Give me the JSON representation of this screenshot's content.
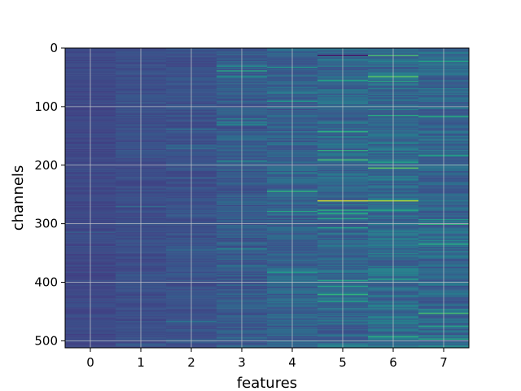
{
  "chart_data": {
    "type": "heatmap",
    "title": "",
    "xlabel": "features",
    "ylabel": "channels",
    "x_categories": [
      0,
      1,
      2,
      3,
      4,
      5,
      6,
      7
    ],
    "x_ticks": [
      "0",
      "1",
      "2",
      "3",
      "4",
      "5",
      "6",
      "7"
    ],
    "y_ticks": [
      "0",
      "100",
      "200",
      "300",
      "400",
      "500"
    ],
    "y_tick_values": [
      0,
      100,
      200,
      300,
      400,
      500
    ],
    "y_range": [
      0,
      512
    ],
    "n_channels": 512,
    "colormap": "viridis",
    "grid": true,
    "column_mean_levels": [
      0.22,
      0.24,
      0.25,
      0.29,
      0.31,
      0.33,
      0.35,
      0.33
    ],
    "column_spread": [
      0.03,
      0.035,
      0.04,
      0.07,
      0.08,
      0.09,
      0.1,
      0.09
    ],
    "highlight_cells": [
      {
        "feature": 5,
        "channel": 260,
        "level": 0.95
      },
      {
        "feature": 6,
        "channel": 260,
        "level": 0.9
      },
      {
        "feature": 5,
        "channel": 12,
        "level": 0.05
      },
      {
        "feature": 6,
        "channel": 12,
        "level": 0.7
      },
      {
        "feature": 6,
        "channel": 48,
        "level": 0.75
      },
      {
        "feature": 6,
        "channel": 205,
        "level": 0.75
      },
      {
        "feature": 5,
        "channel": 190,
        "level": 0.7
      },
      {
        "feature": 4,
        "channel": 245,
        "level": 0.65
      },
      {
        "feature": 7,
        "channel": 300,
        "level": 0.65
      },
      {
        "feature": 7,
        "channel": 452,
        "level": 0.7
      },
      {
        "feature": 5,
        "channel": 420,
        "level": 0.65
      },
      {
        "feature": 3,
        "channel": 38,
        "level": 0.6
      }
    ],
    "colors": {
      "axes_frame": "#000000",
      "grid": "#cccccc",
      "background": "#ffffff"
    }
  }
}
